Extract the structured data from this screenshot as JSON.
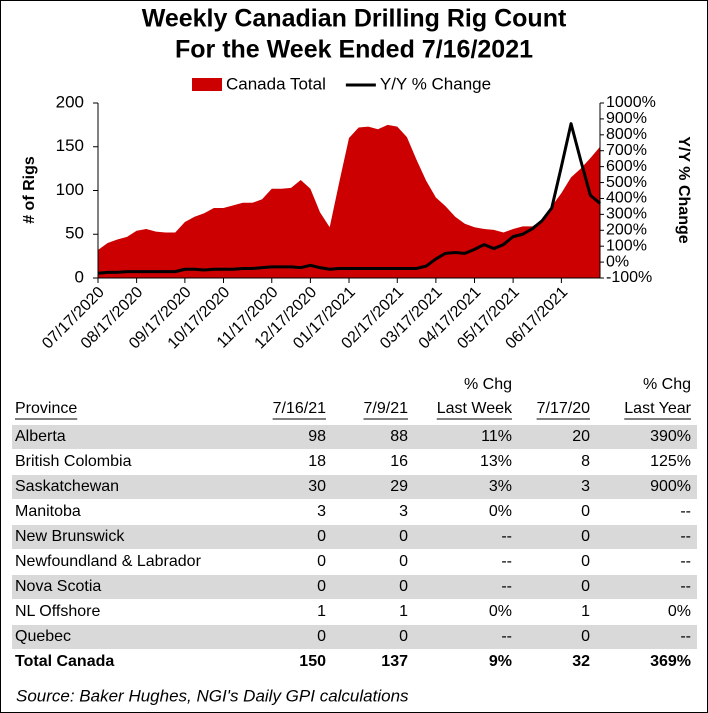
{
  "chart_data": {
    "type": "combo",
    "title": "Weekly Canadian Drilling Rig Count",
    "subtitle": "For the Week Ended 7/16/2021",
    "y_label": "# of Rigs",
    "y2_label": "Y/Y % Change",
    "categories": [
      "07/17/2020",
      null,
      null,
      null,
      "08/17/2020",
      null,
      null,
      null,
      null,
      "09/17/2020",
      null,
      null,
      null,
      "10/17/2020",
      null,
      null,
      null,
      null,
      "11/17/2020",
      null,
      null,
      null,
      "12/17/2020",
      null,
      null,
      null,
      "01/17/2021",
      null,
      null,
      null,
      null,
      "02/17/2021",
      null,
      null,
      null,
      "03/17/2021",
      null,
      null,
      null,
      "04/17/2021",
      null,
      null,
      null,
      "05/17/2021",
      null,
      null,
      null,
      null,
      "06/17/2021",
      null,
      null,
      null,
      null
    ],
    "series": [
      {
        "name": "Canada Total",
        "type": "area",
        "color": "#cc0000",
        "values": [
          32,
          40,
          44,
          47,
          54,
          56,
          53,
          52,
          52,
          64,
          70,
          74,
          80,
          80,
          83,
          86,
          86,
          90,
          102,
          102,
          103,
          112,
          102,
          75,
          58,
          110,
          160,
          172,
          173,
          170,
          175,
          173,
          161,
          135,
          111,
          92,
          82,
          70,
          62,
          58,
          56,
          55,
          52,
          56,
          59,
          59,
          66,
          82,
          97,
          115,
          125,
          137,
          150
        ]
      },
      {
        "name": "Y/Y % Change",
        "type": "line",
        "color": "#000000",
        "axis": "y2",
        "values": [
          -70,
          -65,
          -65,
          -60,
          -60,
          -60,
          -60,
          -60,
          -60,
          -45,
          -45,
          -50,
          -45,
          -45,
          -45,
          -40,
          -40,
          -35,
          -30,
          -30,
          -30,
          -35,
          -20,
          -35,
          -45,
          -40,
          -40,
          -40,
          -40,
          -40,
          -40,
          -40,
          -40,
          -40,
          -25,
          20,
          55,
          60,
          55,
          80,
          110,
          85,
          110,
          160,
          175,
          210,
          260,
          340,
          600,
          870,
          640,
          420,
          369
        ]
      }
    ],
    "ylim": [
      0,
      200
    ],
    "yticks": [
      0,
      50,
      100,
      150,
      200
    ],
    "y2lim": [
      -100,
      1000
    ],
    "y2ticks": [
      {
        "value": -100,
        "label": "-100%"
      },
      {
        "value": 0,
        "label": "0%"
      },
      {
        "value": 100,
        "label": "100%"
      },
      {
        "value": 200,
        "label": "200%"
      },
      {
        "value": 300,
        "label": "300%"
      },
      {
        "value": 400,
        "label": "400%"
      },
      {
        "value": 500,
        "label": "500%"
      },
      {
        "value": 600,
        "label": "600%"
      },
      {
        "value": 700,
        "label": "700%"
      },
      {
        "value": 800,
        "label": "800%"
      },
      {
        "value": 900,
        "label": "900%"
      },
      {
        "value": 1000,
        "label": "1000%"
      }
    ],
    "negative_tick_color": "#ff0000",
    "legend": "top"
  },
  "table": {
    "header_top": [
      "",
      "",
      "",
      "% Chg",
      "",
      "% Chg"
    ],
    "header": [
      "Province",
      "7/16/21",
      "7/9/21",
      "Last Week",
      "7/17/20",
      "Last Year"
    ],
    "rows": [
      [
        "Alberta",
        "98",
        "88",
        "11%",
        "20",
        "390%"
      ],
      [
        "British Colombia",
        "18",
        "16",
        "13%",
        "8",
        "125%"
      ],
      [
        "Saskatchewan",
        "30",
        "29",
        "3%",
        "3",
        "900%"
      ],
      [
        "Manitoba",
        "3",
        "3",
        "0%",
        "0",
        "--"
      ],
      [
        "New Brunswick",
        "0",
        "0",
        "--",
        "0",
        "--"
      ],
      [
        "Newfoundland & Labrador",
        "0",
        "0",
        "--",
        "0",
        "--"
      ],
      [
        "Nova Scotia",
        "0",
        "0",
        "--",
        "0",
        "--"
      ],
      [
        "NL Offshore",
        "1",
        "1",
        "0%",
        "1",
        "0%"
      ],
      [
        "Quebec",
        "0",
        "0",
        "--",
        "0",
        "--"
      ]
    ],
    "total": [
      "Total Canada",
      "150",
      "137",
      "9%",
      "32",
      "369%"
    ]
  },
  "source": "Source: Baker Hughes, NGI's Daily GPI calculations"
}
